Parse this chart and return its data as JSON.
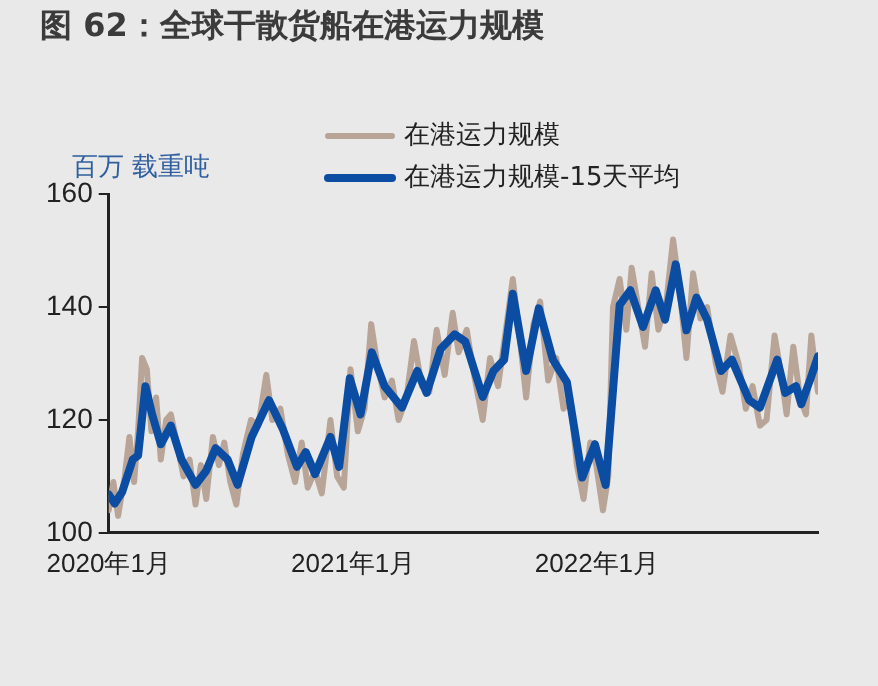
{
  "chart_data": {
    "type": "line",
    "title": "图 62：全球干散货船在港运力规模",
    "ylabel": "百万 载重吨",
    "xlim": [
      "2020-01-01",
      "2022-11-28"
    ],
    "xticks": [
      {
        "value": "2020-01-01",
        "label": "2020年1月"
      },
      {
        "value": "2021-01-01",
        "label": "2021年1月"
      },
      {
        "value": "2022-01-01",
        "label": "2022年1月"
      }
    ],
    "ylim": [
      100,
      160
    ],
    "yticks": [
      100,
      120,
      140,
      160
    ],
    "grid": false,
    "legend": "top right",
    "marker": "none",
    "line_style": "solid",
    "series": [
      {
        "name": "在港运力规模",
        "color": "#b8a598",
        "x": [
          "2020-01-01",
          "2020-01-08",
          "2020-01-15",
          "2020-01-25",
          "2020-02-01",
          "2020-02-08",
          "2020-02-14",
          "2020-02-20",
          "2020-02-27",
          "2020-03-05",
          "2020-03-12",
          "2020-03-19",
          "2020-03-27",
          "2020-04-03",
          "2020-04-12",
          "2020-04-22",
          "2020-05-01",
          "2020-05-10",
          "2020-05-18",
          "2020-05-26",
          "2020-06-05",
          "2020-06-14",
          "2020-06-22",
          "2020-07-01",
          "2020-07-10",
          "2020-07-20",
          "2020-08-01",
          "2020-08-12",
          "2020-08-24",
          "2020-09-02",
          "2020-09-14",
          "2020-09-25",
          "2020-10-06",
          "2020-10-16",
          "2020-10-25",
          "2020-11-05",
          "2020-11-15",
          "2020-11-28",
          "2020-12-08",
          "2020-12-18",
          "2020-12-28",
          "2021-01-08",
          "2021-01-18",
          "2021-01-28",
          "2021-02-06",
          "2021-02-17",
          "2021-02-28",
          "2021-03-10",
          "2021-03-22",
          "2021-04-02",
          "2021-04-14",
          "2021-04-25",
          "2021-05-06",
          "2021-05-18",
          "2021-05-30",
          "2021-06-08",
          "2021-06-20",
          "2021-07-01",
          "2021-07-14",
          "2021-07-25",
          "2021-08-06",
          "2021-08-20",
          "2021-08-28",
          "2021-09-08",
          "2021-09-17",
          "2021-09-28",
          "2021-10-08",
          "2021-10-20",
          "2021-11-01",
          "2021-11-12",
          "2021-11-22",
          "2021-12-02",
          "2021-12-12",
          "2021-12-22",
          "2021-12-31",
          "2022-01-10",
          "2022-01-18",
          "2022-01-25",
          "2022-02-04",
          "2022-02-14",
          "2022-02-22",
          "2022-03-04",
          "2022-03-14",
          "2022-03-24",
          "2022-04-03",
          "2022-04-15",
          "2022-04-25",
          "2022-05-05",
          "2022-05-15",
          "2022-05-25",
          "2022-06-05",
          "2022-06-15",
          "2022-06-28",
          "2022-07-08",
          "2022-07-20",
          "2022-08-01",
          "2022-08-12",
          "2022-08-22",
          "2022-09-02",
          "2022-09-12",
          "2022-09-24",
          "2022-10-04",
          "2022-10-12",
          "2022-10-22",
          "2022-11-01",
          "2022-11-10",
          "2022-11-18",
          "2022-11-28"
        ],
        "values": [
          104,
          109,
          103,
          110,
          117,
          109,
          118,
          131,
          129,
          118,
          124,
          113,
          120,
          121,
          116,
          110,
          113,
          105,
          112,
          106,
          117,
          112,
          116,
          109,
          105,
          114,
          120,
          119,
          128,
          120,
          122,
          114,
          109,
          116,
          108,
          111,
          107,
          120,
          110,
          108,
          129,
          118,
          122,
          137,
          130,
          124,
          127,
          120,
          124,
          134,
          126,
          125,
          136,
          128,
          139,
          132,
          136,
          128,
          120,
          131,
          126,
          138,
          145,
          134,
          124,
          137,
          141,
          127,
          131,
          122,
          124,
          112,
          106,
          116,
          112,
          104,
          110,
          140,
          145,
          136,
          147,
          140,
          133,
          146,
          136,
          141,
          152,
          143,
          131,
          146,
          138,
          140,
          130,
          125,
          135,
          130,
          122,
          126,
          119,
          120,
          135,
          128,
          121,
          133,
          124,
          121,
          135,
          125
        ]
      },
      {
        "name": "在港运力规模-15天平均",
        "color": "#0b4da2",
        "x": [
          "2020-01-01",
          "2020-01-10",
          "2020-01-21",
          "2020-02-06",
          "2020-02-14",
          "2020-02-25",
          "2020-03-06",
          "2020-03-19",
          "2020-04-03",
          "2020-04-19",
          "2020-05-10",
          "2020-05-26",
          "2020-06-09",
          "2020-06-27",
          "2020-07-12",
          "2020-08-02",
          "2020-08-28",
          "2020-09-18",
          "2020-10-09",
          "2020-10-22",
          "2020-11-05",
          "2020-11-28",
          "2020-12-11",
          "2020-12-27",
          "2021-01-12",
          "2021-01-29",
          "2021-02-17",
          "2021-03-15",
          "2021-04-07",
          "2021-04-21",
          "2021-05-12",
          "2021-06-02",
          "2021-06-18",
          "2021-07-14",
          "2021-07-30",
          "2021-08-15",
          "2021-08-28",
          "2021-09-17",
          "2021-10-06",
          "2021-10-27",
          "2021-11-17",
          "2021-12-10",
          "2021-12-29",
          "2022-01-14",
          "2022-02-04",
          "2022-02-20",
          "2022-03-11",
          "2022-03-30",
          "2022-04-13",
          "2022-04-29",
          "2022-05-15",
          "2022-05-30",
          "2022-06-15",
          "2022-07-06",
          "2022-07-22",
          "2022-08-17",
          "2022-09-02",
          "2022-09-28",
          "2022-10-10",
          "2022-10-26",
          "2022-11-03",
          "2022-11-17",
          "2022-11-28"
        ],
        "values": [
          106.8,
          105.2,
          107.2,
          113,
          113.7,
          126,
          121,
          115.7,
          119,
          113,
          108.5,
          111,
          115,
          113,
          108.5,
          117,
          123.5,
          118.3,
          111.7,
          114.3,
          110.4,
          117,
          111.7,
          127.4,
          121,
          132,
          126,
          122.2,
          128.7,
          124.8,
          132.6,
          135.2,
          133.9,
          124.1,
          128.7,
          130.7,
          142.4,
          128.7,
          139.8,
          130.7,
          126.7,
          109.8,
          115.7,
          108.5,
          140.4,
          143,
          136.5,
          143,
          137.8,
          147.6,
          135.9,
          141.7,
          137.8,
          128.7,
          130.7,
          123.5,
          122.2,
          130.7,
          124.8,
          126,
          122.8,
          127.4,
          131.3
        ]
      }
    ]
  }
}
